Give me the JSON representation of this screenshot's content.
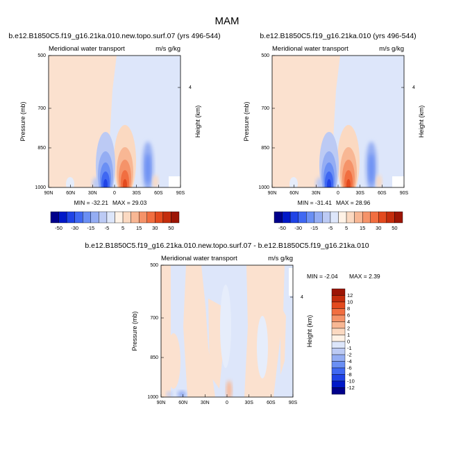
{
  "figure_title": "MAM",
  "chart_data": [
    {
      "type": "heatmap",
      "title": "b.e12.B1850C5.f19_g16.21ka.010.new.topo.surf.07 (yrs 496-544)",
      "left_label": "Meridional water transport",
      "right_label": "m/s g/kg",
      "xlabel": "",
      "ylabel": "Pressure (mb)",
      "y2label": "Height (km)",
      "xticks": [
        "90N",
        "60N",
        "30N",
        "0",
        "30S",
        "60S",
        "90S"
      ],
      "yticks": [
        "500",
        "700",
        "850",
        "1000"
      ],
      "y2ticks": [
        "4"
      ],
      "ylim": [
        1000,
        500
      ],
      "min_label": "MIN = -32.21",
      "max_label": "MAX =  29.03",
      "min": -32.21,
      "max": 29.03,
      "colorbar": {
        "orientation": "horizontal",
        "levels": [
          "-50",
          "-30",
          "-15",
          "-5",
          "5",
          "15",
          "30",
          "50"
        ],
        "colors": [
          "#00008b",
          "#0018c8",
          "#1f43e6",
          "#3f68f2",
          "#6a8ff4",
          "#94adf3",
          "#bccaf4",
          "#dde6fa",
          "#fff2e6",
          "#fbd9c1",
          "#f8b794",
          "#f59369",
          "#f16e40",
          "#e34a1e",
          "#c42d0d",
          "#9c1505"
        ]
      },
      "features": [
        {
          "lat": 18,
          "p": 980,
          "value": -32.21
        },
        {
          "lat": -10,
          "p": 980,
          "value": 29.03
        },
        {
          "lat": -43,
          "p": 930,
          "value": -12
        },
        {
          "lat": 43,
          "p": 990,
          "value": -6
        }
      ]
    },
    {
      "type": "heatmap",
      "title": "b.e12.B1850C5.f19_g16.21ka.010 (yrs 496-544)",
      "left_label": "Meridional water transport",
      "right_label": "m/s g/kg",
      "xlabel": "",
      "ylabel": "Pressure (mb)",
      "y2label": "Height (km)",
      "xticks": [
        "90N",
        "60N",
        "30N",
        "0",
        "30S",
        "60S",
        "90S"
      ],
      "yticks": [
        "500",
        "700",
        "850",
        "1000"
      ],
      "y2ticks": [
        "4"
      ],
      "ylim": [
        1000,
        500
      ],
      "min_label": "MIN = -31.41",
      "max_label": "MAX =  28.96",
      "min": -31.41,
      "max": 28.96,
      "colorbar": {
        "orientation": "horizontal",
        "levels": [
          "-50",
          "-30",
          "-15",
          "-5",
          "5",
          "15",
          "30",
          "50"
        ],
        "colors": [
          "#00008b",
          "#0018c8",
          "#1f43e6",
          "#3f68f2",
          "#6a8ff4",
          "#94adf3",
          "#bccaf4",
          "#dde6fa",
          "#fff2e6",
          "#fbd9c1",
          "#f8b794",
          "#f59369",
          "#f16e40",
          "#e34a1e",
          "#c42d0d",
          "#9c1505"
        ]
      },
      "features": [
        {
          "lat": 18,
          "p": 980,
          "value": -31.41
        },
        {
          "lat": -10,
          "p": 980,
          "value": 28.96
        },
        {
          "lat": -43,
          "p": 930,
          "value": -12
        },
        {
          "lat": 43,
          "p": 990,
          "value": -6
        }
      ]
    },
    {
      "type": "heatmap",
      "title": "b.e12.B1850C5.f19_g16.21ka.010.new.topo.surf.07 - b.e12.B1850C5.f19_g16.21ka.010",
      "left_label": "Meridional water transport",
      "right_label": "m/s g/kg",
      "xlabel": "",
      "ylabel": "Pressure (mb)",
      "y2label": "Height (km)",
      "xticks": [
        "90N",
        "60N",
        "30N",
        "0",
        "30S",
        "60S",
        "90S"
      ],
      "yticks": [
        "500",
        "700",
        "850",
        "1000"
      ],
      "y2ticks": [
        "4"
      ],
      "ylim": [
        1000,
        500
      ],
      "min_label": "MIN = -2.04",
      "max_label": "MAX =  2.39",
      "min": -2.04,
      "max": 2.39,
      "colorbar": {
        "orientation": "vertical",
        "levels": [
          "12",
          "10",
          "8",
          "6",
          "4",
          "2",
          "1",
          "0",
          "-1",
          "-2",
          "-4",
          "-6",
          "-8",
          "-10",
          "-12"
        ],
        "colors": [
          "#9c1505",
          "#c42d0d",
          "#e34a1e",
          "#f16e40",
          "#f59369",
          "#f8b794",
          "#fbd9c1",
          "#fff2e6",
          "#dde6fa",
          "#bccaf4",
          "#94adf3",
          "#6a8ff4",
          "#3f68f2",
          "#1f43e6",
          "#0018c8",
          "#00008b"
        ]
      },
      "features": [
        {
          "lat": 0,
          "p": 985,
          "value": 2.39
        },
        {
          "lat": 50,
          "p": 990,
          "value": -2.04
        }
      ]
    }
  ]
}
